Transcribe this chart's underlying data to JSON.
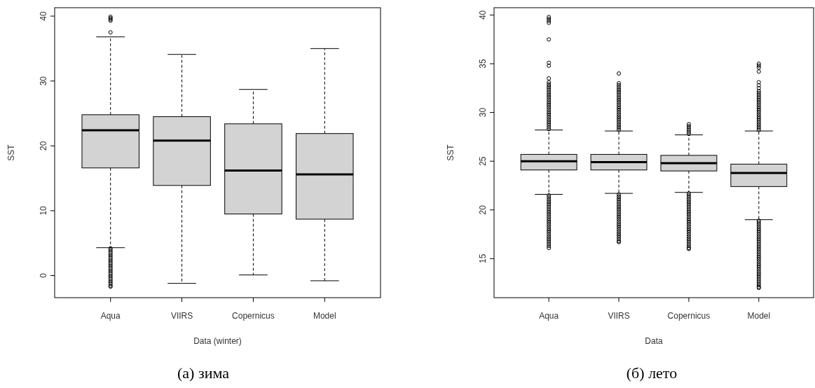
{
  "chart_data": [
    {
      "type": "box",
      "xlabel": "Data (winter)",
      "ylabel": "SST",
      "annotations": [
        "(а) зима"
      ],
      "categories": [
        "Aqua",
        "VIIRS",
        "Copernicus",
        "Model"
      ],
      "color": "#d3d3d3",
      "ylim": [
        -3.4,
        41.3
      ],
      "yticks": [
        0,
        10,
        20,
        30,
        40
      ],
      "grid": false,
      "boxes": [
        {
          "low": 4.3,
          "q1": 16.6,
          "median": 22.4,
          "q3": 24.8,
          "high": 36.8,
          "outliers": [
            37.5,
            39.3,
            39.5,
            39.7,
            39.9,
            4.2,
            3.95,
            3.7,
            3.45,
            3.2,
            2.95,
            2.7,
            2.45,
            2.2,
            1.95,
            1.7,
            1.45,
            1.2,
            0.95,
            0.7,
            0.45,
            0.2,
            -0.05,
            -0.3,
            -0.55,
            -0.8,
            -1.05,
            -1.3,
            -1.55,
            -1.7
          ]
        },
        {
          "low": -1.2,
          "q1": 13.9,
          "median": 20.8,
          "q3": 24.5,
          "high": 34.1
        },
        {
          "low": 0.1,
          "q1": 9.5,
          "median": 16.2,
          "q3": 23.4,
          "high": 28.7
        },
        {
          "low": -0.8,
          "q1": 8.7,
          "median": 15.6,
          "q3": 21.9,
          "high": 35.0
        }
      ]
    },
    {
      "type": "box",
      "xlabel": "Data",
      "ylabel": "SST",
      "annotations": [
        "(б) лето"
      ],
      "categories": [
        "Aqua",
        "VIIRS",
        "Copernicus",
        "Model"
      ],
      "color": "#d3d3d3",
      "ylim": [
        11.0,
        40.75
      ],
      "yticks": [
        15,
        20,
        25,
        30,
        35,
        40
      ],
      "grid": false,
      "boxes": [
        {
          "low": 21.6,
          "q1": 24.1,
          "median": 25.0,
          "q3": 25.7,
          "high": 28.2,
          "outliers": [
            28.3,
            28.5,
            28.7,
            28.9,
            29.1,
            29.3,
            29.5,
            29.7,
            29.9,
            30.1,
            30.3,
            30.5,
            30.7,
            30.9,
            31.1,
            31.3,
            31.5,
            31.7,
            31.9,
            32.1,
            32.3,
            32.5,
            32.7,
            32.9,
            33.1,
            33.5,
            34.8,
            35.1,
            37.5,
            39.2,
            39.4,
            39.6,
            39.8,
            21.5,
            21.3,
            21.1,
            20.9,
            20.7,
            20.5,
            20.3,
            20.1,
            19.9,
            19.7,
            19.5,
            19.3,
            19.1,
            18.9,
            18.7,
            18.5,
            18.3,
            18.1,
            17.9,
            17.7,
            17.5,
            17.3,
            17.1,
            16.9,
            16.7,
            16.5,
            16.3,
            16.1
          ]
        },
        {
          "low": 21.7,
          "q1": 24.1,
          "median": 24.9,
          "q3": 25.7,
          "high": 28.1,
          "outliers": [
            28.2,
            28.4,
            28.6,
            28.8,
            29.0,
            29.2,
            29.4,
            29.6,
            29.8,
            30.0,
            30.2,
            30.4,
            30.6,
            30.8,
            31.0,
            31.2,
            31.4,
            31.6,
            31.8,
            32.0,
            32.2,
            32.4,
            32.6,
            32.8,
            33.0,
            34.0,
            21.6,
            21.4,
            21.2,
            21.0,
            20.8,
            20.6,
            20.4,
            20.2,
            20.0,
            19.8,
            19.6,
            19.4,
            19.2,
            19.0,
            18.8,
            18.6,
            18.4,
            18.2,
            18.0,
            17.8,
            17.6,
            17.4,
            17.2,
            17.0,
            16.8,
            16.7
          ]
        },
        {
          "low": 21.8,
          "q1": 24.0,
          "median": 24.8,
          "q3": 25.6,
          "high": 27.7,
          "outliers": [
            27.8,
            28.0,
            28.2,
            28.4,
            28.6,
            28.8,
            21.7,
            21.5,
            21.3,
            21.1,
            20.9,
            20.7,
            20.5,
            20.3,
            20.1,
            19.9,
            19.7,
            19.5,
            19.3,
            19.1,
            18.9,
            18.7,
            18.5,
            18.3,
            18.1,
            17.9,
            17.7,
            17.5,
            17.3,
            17.1,
            16.9,
            16.7,
            16.5,
            16.3,
            16.1,
            16.0
          ]
        },
        {
          "low": 19.0,
          "q1": 22.4,
          "median": 23.8,
          "q3": 24.7,
          "high": 28.1,
          "outliers": [
            28.2,
            28.4,
            28.6,
            28.8,
            29.0,
            29.2,
            29.4,
            29.6,
            29.8,
            30.0,
            30.2,
            30.4,
            30.6,
            30.8,
            31.0,
            31.2,
            31.4,
            31.6,
            31.8,
            32.0,
            32.2,
            32.5,
            32.8,
            33.1,
            34.2,
            34.6,
            34.8,
            35.0,
            18.9,
            18.7,
            18.5,
            18.3,
            18.1,
            17.9,
            17.7,
            17.5,
            17.3,
            17.1,
            16.9,
            16.7,
            16.5,
            16.3,
            16.1,
            15.9,
            15.7,
            15.5,
            15.3,
            15.1,
            14.9,
            14.7,
            14.5,
            14.3,
            14.1,
            13.9,
            13.7,
            13.5,
            13.3,
            13.1,
            12.9,
            12.7,
            12.5,
            12.3,
            12.1,
            12.0
          ]
        }
      ]
    }
  ]
}
